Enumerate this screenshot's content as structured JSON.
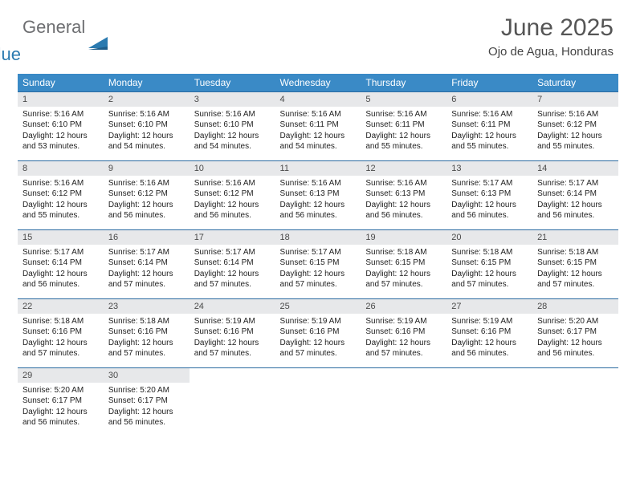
{
  "brand": {
    "general": "General",
    "blue": "Blue"
  },
  "title": "June 2025",
  "location": "Ojo de Agua, Honduras",
  "colors": {
    "header_bg": "#3a8ac6",
    "header_text": "#ffffff",
    "daynum_bg": "#e7e8ea",
    "row_border": "#2a6aa0",
    "title_color": "#555555",
    "body_text": "#222222",
    "logo_gray": "#6d6e71",
    "logo_blue": "#2a7ab0"
  },
  "dow": [
    "Sunday",
    "Monday",
    "Tuesday",
    "Wednesday",
    "Thursday",
    "Friday",
    "Saturday"
  ],
  "weeks": [
    [
      {
        "n": "1",
        "sr": "5:16 AM",
        "ss": "6:10 PM",
        "dl": "12 hours and 53 minutes."
      },
      {
        "n": "2",
        "sr": "5:16 AM",
        "ss": "6:10 PM",
        "dl": "12 hours and 54 minutes."
      },
      {
        "n": "3",
        "sr": "5:16 AM",
        "ss": "6:10 PM",
        "dl": "12 hours and 54 minutes."
      },
      {
        "n": "4",
        "sr": "5:16 AM",
        "ss": "6:11 PM",
        "dl": "12 hours and 54 minutes."
      },
      {
        "n": "5",
        "sr": "5:16 AM",
        "ss": "6:11 PM",
        "dl": "12 hours and 55 minutes."
      },
      {
        "n": "6",
        "sr": "5:16 AM",
        "ss": "6:11 PM",
        "dl": "12 hours and 55 minutes."
      },
      {
        "n": "7",
        "sr": "5:16 AM",
        "ss": "6:12 PM",
        "dl": "12 hours and 55 minutes."
      }
    ],
    [
      {
        "n": "8",
        "sr": "5:16 AM",
        "ss": "6:12 PM",
        "dl": "12 hours and 55 minutes."
      },
      {
        "n": "9",
        "sr": "5:16 AM",
        "ss": "6:12 PM",
        "dl": "12 hours and 56 minutes."
      },
      {
        "n": "10",
        "sr": "5:16 AM",
        "ss": "6:12 PM",
        "dl": "12 hours and 56 minutes."
      },
      {
        "n": "11",
        "sr": "5:16 AM",
        "ss": "6:13 PM",
        "dl": "12 hours and 56 minutes."
      },
      {
        "n": "12",
        "sr": "5:16 AM",
        "ss": "6:13 PM",
        "dl": "12 hours and 56 minutes."
      },
      {
        "n": "13",
        "sr": "5:17 AM",
        "ss": "6:13 PM",
        "dl": "12 hours and 56 minutes."
      },
      {
        "n": "14",
        "sr": "5:17 AM",
        "ss": "6:14 PM",
        "dl": "12 hours and 56 minutes."
      }
    ],
    [
      {
        "n": "15",
        "sr": "5:17 AM",
        "ss": "6:14 PM",
        "dl": "12 hours and 56 minutes."
      },
      {
        "n": "16",
        "sr": "5:17 AM",
        "ss": "6:14 PM",
        "dl": "12 hours and 57 minutes."
      },
      {
        "n": "17",
        "sr": "5:17 AM",
        "ss": "6:14 PM",
        "dl": "12 hours and 57 minutes."
      },
      {
        "n": "18",
        "sr": "5:17 AM",
        "ss": "6:15 PM",
        "dl": "12 hours and 57 minutes."
      },
      {
        "n": "19",
        "sr": "5:18 AM",
        "ss": "6:15 PM",
        "dl": "12 hours and 57 minutes."
      },
      {
        "n": "20",
        "sr": "5:18 AM",
        "ss": "6:15 PM",
        "dl": "12 hours and 57 minutes."
      },
      {
        "n": "21",
        "sr": "5:18 AM",
        "ss": "6:15 PM",
        "dl": "12 hours and 57 minutes."
      }
    ],
    [
      {
        "n": "22",
        "sr": "5:18 AM",
        "ss": "6:16 PM",
        "dl": "12 hours and 57 minutes."
      },
      {
        "n": "23",
        "sr": "5:18 AM",
        "ss": "6:16 PM",
        "dl": "12 hours and 57 minutes."
      },
      {
        "n": "24",
        "sr": "5:19 AM",
        "ss": "6:16 PM",
        "dl": "12 hours and 57 minutes."
      },
      {
        "n": "25",
        "sr": "5:19 AM",
        "ss": "6:16 PM",
        "dl": "12 hours and 57 minutes."
      },
      {
        "n": "26",
        "sr": "5:19 AM",
        "ss": "6:16 PM",
        "dl": "12 hours and 57 minutes."
      },
      {
        "n": "27",
        "sr": "5:19 AM",
        "ss": "6:16 PM",
        "dl": "12 hours and 56 minutes."
      },
      {
        "n": "28",
        "sr": "5:20 AM",
        "ss": "6:17 PM",
        "dl": "12 hours and 56 minutes."
      }
    ],
    [
      {
        "n": "29",
        "sr": "5:20 AM",
        "ss": "6:17 PM",
        "dl": "12 hours and 56 minutes."
      },
      {
        "n": "30",
        "sr": "5:20 AM",
        "ss": "6:17 PM",
        "dl": "12 hours and 56 minutes."
      },
      null,
      null,
      null,
      null,
      null
    ]
  ],
  "labels": {
    "sunrise": "Sunrise: ",
    "sunset": "Sunset: ",
    "daylight": "Daylight: "
  }
}
